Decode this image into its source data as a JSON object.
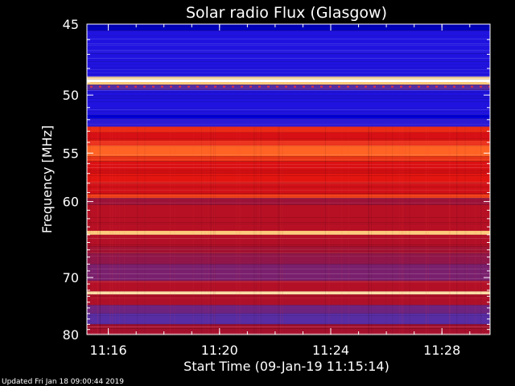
{
  "chart_data": {
    "type": "heatmap",
    "title": "Solar radio Flux (Glasgow)",
    "xlabel": "Start Time (09-Jan-19 11:15:14)",
    "ylabel": "Frequency [MHz]",
    "x_ticks": [
      "11:16",
      "11:20",
      "11:24",
      "11:28"
    ],
    "x_tick_minutes": [
      0.77,
      4.77,
      8.77,
      12.77
    ],
    "x_range_minutes": [
      0,
      14.5
    ],
    "y_ticks": [
      "45",
      "50",
      "55",
      "60",
      "70",
      "80"
    ],
    "y_tick_values": [
      45,
      50,
      55,
      60,
      70,
      80
    ],
    "y_range": [
      45,
      80
    ],
    "y_scale": "reciprocal",
    "grid": false,
    "colormap": [
      "#000020",
      "#0000ff",
      "#5030b0",
      "#a01030",
      "#e01010",
      "#ff6020",
      "#ffd080",
      "#ffffff"
    ],
    "intensity_bands": [
      {
        "from": 44.8,
        "to": 45.4,
        "level": 0.1
      },
      {
        "from": 45.4,
        "to": 48.6,
        "level": 0.2
      },
      {
        "from": 48.6,
        "to": 48.8,
        "level": 0.9
      },
      {
        "from": 48.8,
        "to": 49.0,
        "level": 1.0
      },
      {
        "from": 49.0,
        "to": 49.2,
        "level": 0.85
      },
      {
        "from": 49.2,
        "to": 49.6,
        "level": 0.3
      },
      {
        "from": 49.6,
        "to": 51.6,
        "level": 0.2
      },
      {
        "from": 51.6,
        "to": 51.9,
        "level": 0.12
      },
      {
        "from": 51.9,
        "to": 52.6,
        "level": 0.22
      },
      {
        "from": 52.6,
        "to": 53.1,
        "level": 0.62
      },
      {
        "from": 53.1,
        "to": 53.8,
        "level": 0.55
      },
      {
        "from": 53.8,
        "to": 54.3,
        "level": 0.62
      },
      {
        "from": 54.3,
        "to": 55.3,
        "level": 0.72
      },
      {
        "from": 55.3,
        "to": 55.8,
        "level": 0.64
      },
      {
        "from": 55.8,
        "to": 57.0,
        "level": 0.56
      },
      {
        "from": 57.0,
        "to": 58.0,
        "level": 0.58
      },
      {
        "from": 58.0,
        "to": 59.2,
        "level": 0.54
      },
      {
        "from": 59.2,
        "to": 59.6,
        "level": 0.66
      },
      {
        "from": 59.6,
        "to": 60.4,
        "level": 0.42
      },
      {
        "from": 60.4,
        "to": 63.5,
        "level": 0.48
      },
      {
        "from": 63.5,
        "to": 64.0,
        "level": 0.85
      },
      {
        "from": 64.0,
        "to": 65.5,
        "level": 0.47
      },
      {
        "from": 65.5,
        "to": 66.5,
        "level": 0.43
      },
      {
        "from": 66.5,
        "to": 68.0,
        "level": 0.4
      },
      {
        "from": 68.0,
        "to": 70.5,
        "level": 0.36
      },
      {
        "from": 70.5,
        "to": 72.2,
        "level": 0.47
      },
      {
        "from": 72.2,
        "to": 72.7,
        "level": 0.9
      },
      {
        "from": 72.7,
        "to": 74.5,
        "level": 0.46
      },
      {
        "from": 74.5,
        "to": 76.0,
        "level": 0.34
      },
      {
        "from": 76.0,
        "to": 78.0,
        "level": 0.3
      },
      {
        "from": 78.0,
        "to": 80.2,
        "level": 0.44
      }
    ]
  },
  "footer": {
    "updated": "Updated Fri Jan 18 09:00:44 2019"
  }
}
